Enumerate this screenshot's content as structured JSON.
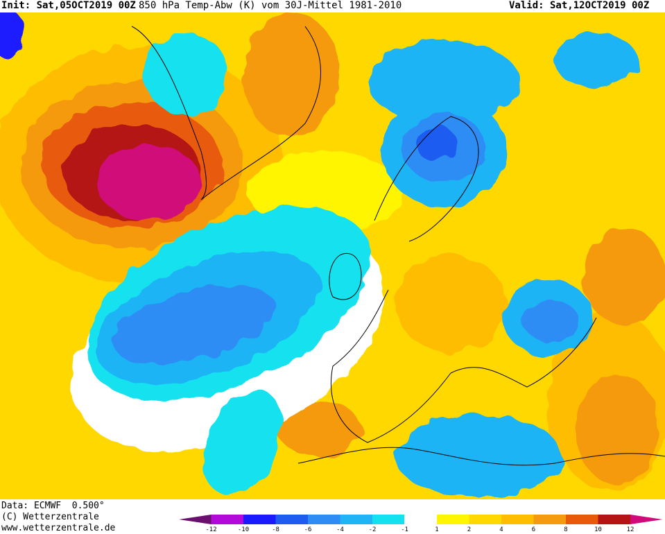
{
  "header": {
    "init": "Init: Sat,05OCT2019 00Z",
    "title": "850 hPa Temp-Abw (K) vom 30J-Mittel 1981-2010",
    "valid": "Valid: Sat,12OCT2019 00Z"
  },
  "footer": {
    "data_source": "Data: ECMWF  0.500°",
    "copyright": "(C) Wetterzentrale",
    "website": "www.wetterzentrale.de"
  },
  "legend": {
    "classes": [
      {
        "from": null,
        "to": -12,
        "color": "#6a0f6e"
      },
      {
        "from": -12,
        "to": -10,
        "color": "#b30ad9"
      },
      {
        "from": -10,
        "to": -8,
        "color": "#1a1aff"
      },
      {
        "from": -8,
        "to": -6,
        "color": "#1e5cf0"
      },
      {
        "from": -6,
        "to": -4,
        "color": "#2d8df5"
      },
      {
        "from": -4,
        "to": -2,
        "color": "#1eb4f5"
      },
      {
        "from": -2,
        "to": -1,
        "color": "#14e1ef"
      },
      {
        "from": -1,
        "to": 1,
        "color": "#ffffff"
      },
      {
        "from": 1,
        "to": 2,
        "color": "#fff500"
      },
      {
        "from": 2,
        "to": 4,
        "color": "#ffd800"
      },
      {
        "from": 4,
        "to": 6,
        "color": "#ffbd00"
      },
      {
        "from": 6,
        "to": 8,
        "color": "#f59a10"
      },
      {
        "from": 8,
        "to": 10,
        "color": "#e85a0a"
      },
      {
        "from": 10,
        "to": 12,
        "color": "#b41414"
      },
      {
        "from": 12,
        "to": null,
        "color": "#d10a7a"
      }
    ],
    "tick_labels": [
      "-12",
      "-10",
      "-8",
      "-6",
      "-4",
      "-2",
      "-1",
      "1",
      "2",
      "4",
      "6",
      "8",
      "10",
      "12"
    ]
  }
}
